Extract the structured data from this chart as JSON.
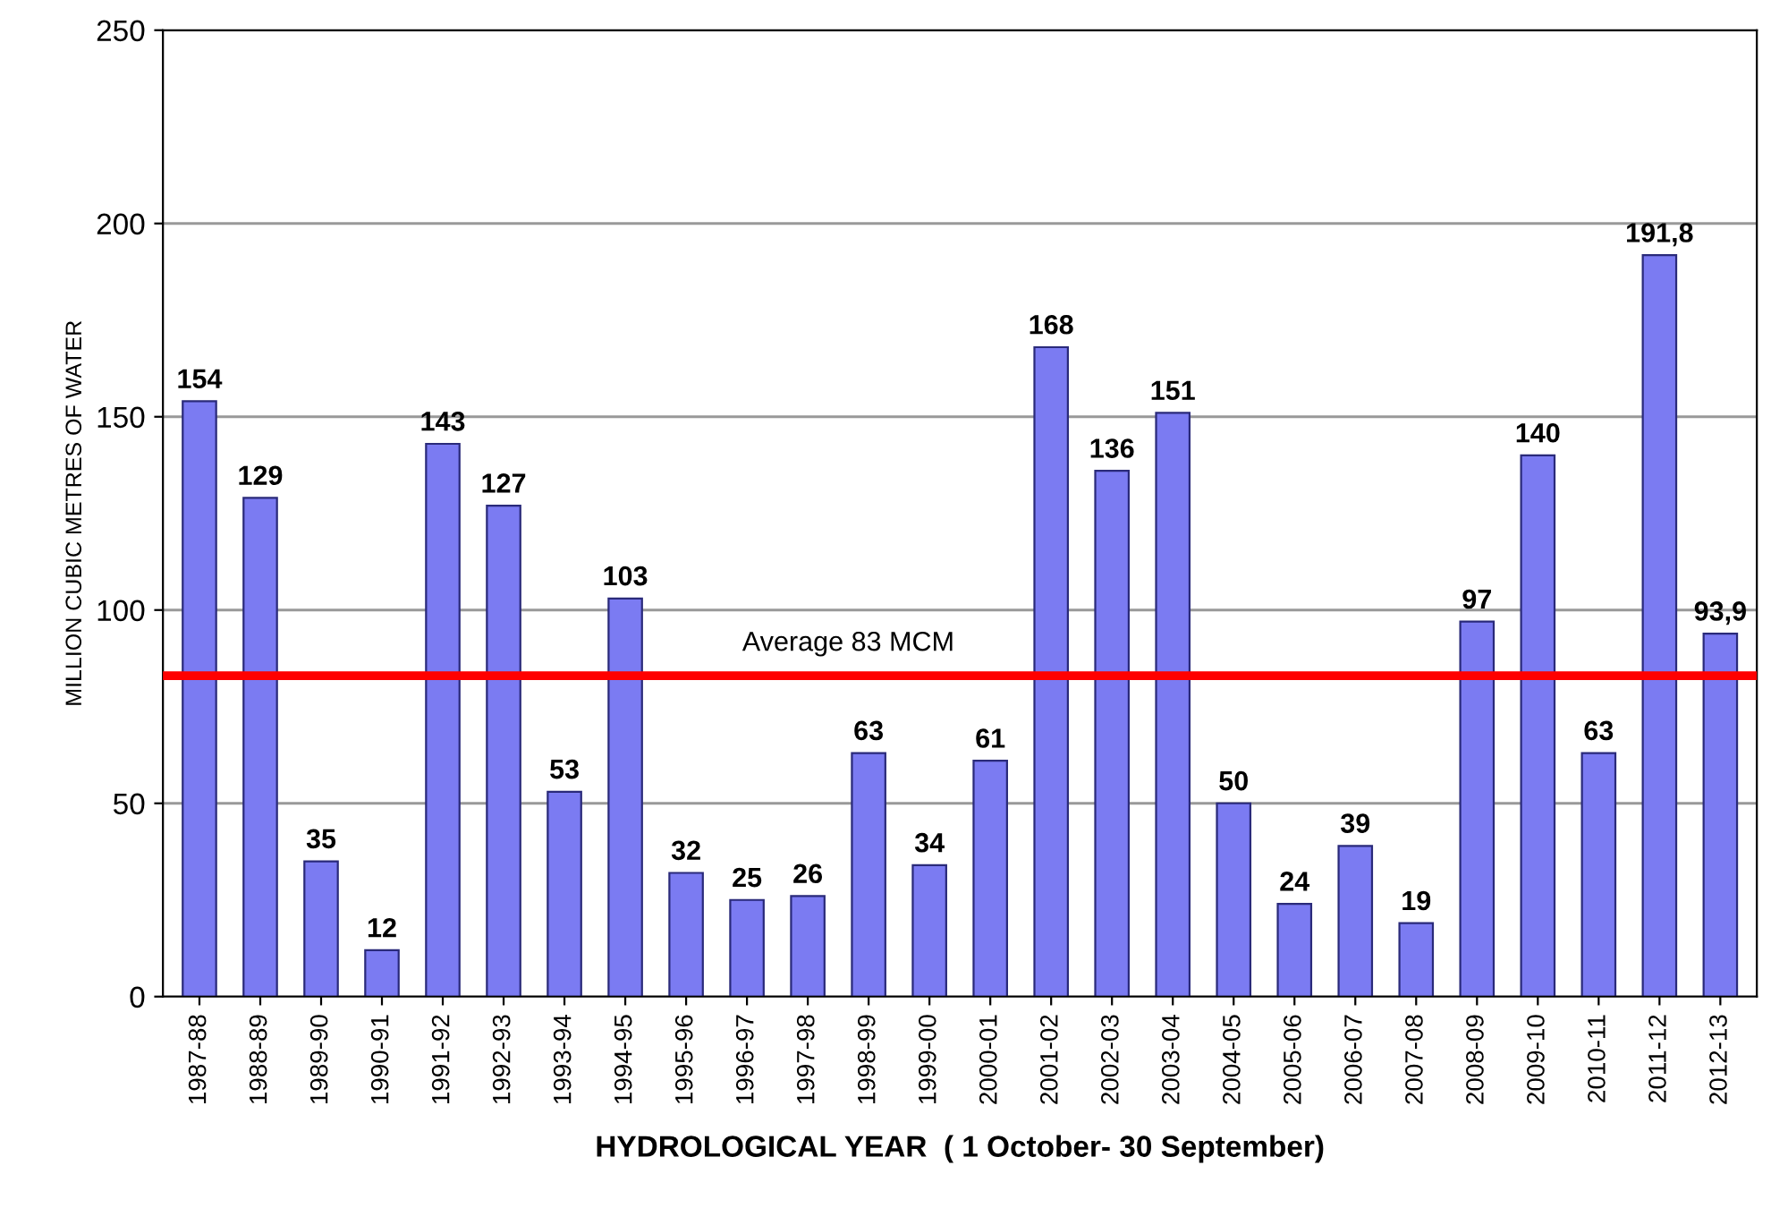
{
  "chart_data": {
    "type": "bar",
    "xlabel": "HYDROLOGICAL YEAR  ( 1 October- 30 September)",
    "ylabel": "MILLION CUBIC METRES OF WATER",
    "categories": [
      "1987-88",
      "1988-89",
      "1989-90",
      "1990-91",
      "1991-92",
      "1992-93",
      "1993-94",
      "1994-95",
      "1995-96",
      "1996-97",
      "1997-98",
      "1998-99",
      "1999-00",
      "2000-01",
      "2001-02",
      "2002-03",
      "2003-04",
      "2004-05",
      "2005-06",
      "2006-07",
      "2007-08",
      "2008-09",
      "2009-10",
      "2010-11",
      "2011-12",
      "2012-13"
    ],
    "values": [
      154,
      129,
      35,
      12,
      143,
      127,
      53,
      103,
      32,
      25,
      26,
      63,
      34,
      61,
      168,
      136,
      151,
      50,
      24,
      39,
      19,
      97,
      140,
      63,
      191.8,
      93.9
    ],
    "value_labels": [
      "154",
      "129",
      "35",
      "12",
      "143",
      "127",
      "53",
      "103",
      "32",
      "25",
      "26",
      "63",
      "34",
      "61",
      "168",
      "136",
      "151",
      "50",
      "24",
      "39",
      "19",
      "97",
      "140",
      "63",
      "191,8",
      "93,9"
    ],
    "color": "#7b7bf2",
    "ylim": [
      0,
      250
    ],
    "yticks": [
      0,
      50,
      100,
      150,
      200,
      250
    ],
    "grid": "y",
    "ref_lines": [
      {
        "axis": "y",
        "value": 83,
        "label": "Average 83 MCM",
        "color": "#ff0000",
        "line_style": "solid"
      }
    ]
  }
}
